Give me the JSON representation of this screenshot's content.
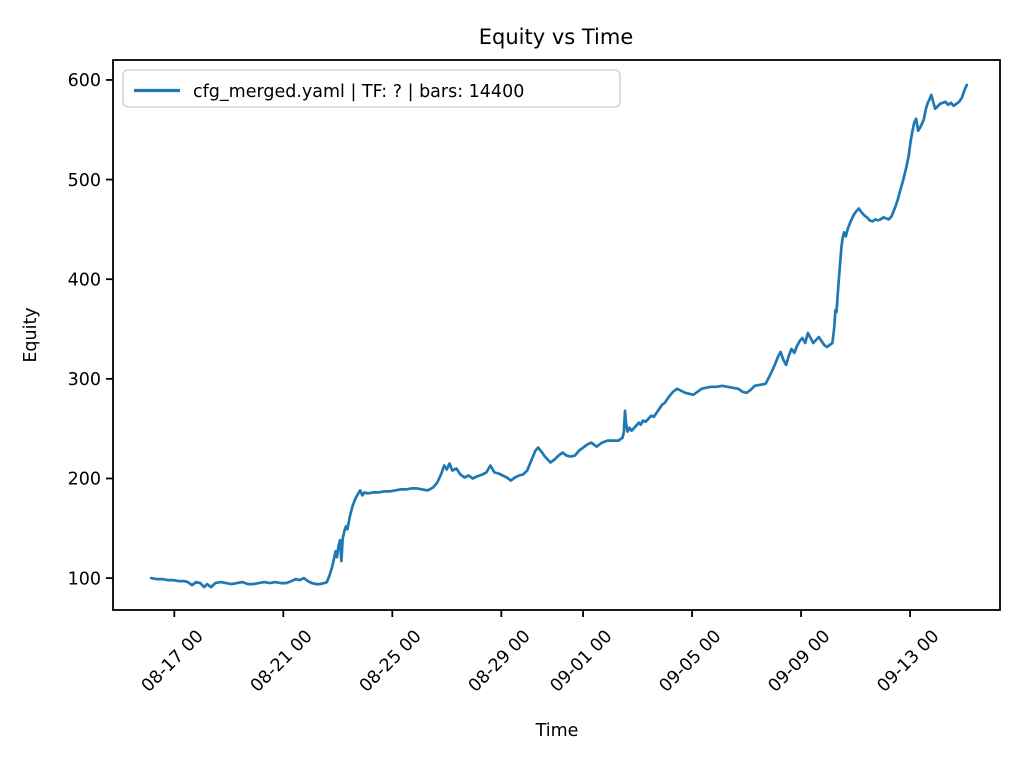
{
  "colors": {
    "background": "#ffffff",
    "axes_frame": "#000000",
    "text": "#000000",
    "legend_border": "#cccccc",
    "legend_fill": "#ffffff",
    "series_blue": "#1f77b4"
  },
  "chart_data": {
    "type": "line",
    "title": "Equity vs Time",
    "xlabel": "Time",
    "ylabel": "Equity",
    "grid": false,
    "legend_position": "upper left",
    "legend_entries": [
      "cfg_merged.yaml | TF: ? | bars: 14400"
    ],
    "x_axis": {
      "x_unit": "days (0 = 08-16 00:00, read from date ticks)",
      "tick_days": [
        1,
        5,
        9,
        13,
        16,
        20,
        24,
        28
      ],
      "tick_labels": [
        "08-17 00",
        "08-21 00",
        "08-25 00",
        "08-29 00",
        "09-01 00",
        "09-05 00",
        "09-09 00",
        "09-13 00"
      ],
      "tick_label_rotation_deg": 45,
      "lim_days": [
        -1.25,
        31.3
      ]
    },
    "y_axis": {
      "ticks": [
        100,
        200,
        300,
        400,
        500,
        600
      ],
      "lim": [
        68,
        620
      ]
    },
    "series": [
      {
        "name": "cfg_merged.yaml | TF: ? | bars: 14400",
        "color": "#1f77b4",
        "line_width": 2.7,
        "points_day_value": [
          [
            0.15,
            100
          ],
          [
            0.35,
            99
          ],
          [
            0.55,
            99
          ],
          [
            0.75,
            98
          ],
          [
            0.95,
            98
          ],
          [
            1.15,
            97
          ],
          [
            1.35,
            97
          ],
          [
            1.5,
            96
          ],
          [
            1.65,
            93
          ],
          [
            1.8,
            96
          ],
          [
            1.95,
            95
          ],
          [
            2.1,
            91
          ],
          [
            2.2,
            94
          ],
          [
            2.35,
            91
          ],
          [
            2.5,
            95
          ],
          [
            2.7,
            96
          ],
          [
            2.9,
            95
          ],
          [
            3.1,
            94
          ],
          [
            3.3,
            95
          ],
          [
            3.5,
            96
          ],
          [
            3.7,
            94
          ],
          [
            3.9,
            94
          ],
          [
            4.1,
            95
          ],
          [
            4.3,
            96
          ],
          [
            4.5,
            95
          ],
          [
            4.7,
            96
          ],
          [
            4.9,
            95
          ],
          [
            5.1,
            95
          ],
          [
            5.3,
            97
          ],
          [
            5.45,
            99
          ],
          [
            5.6,
            98
          ],
          [
            5.75,
            100
          ],
          [
            5.9,
            97
          ],
          [
            6.05,
            95
          ],
          [
            6.2,
            94
          ],
          [
            6.35,
            94
          ],
          [
            6.5,
            95
          ],
          [
            6.6,
            96
          ],
          [
            6.7,
            103
          ],
          [
            6.78,
            110
          ],
          [
            6.85,
            118
          ],
          [
            6.92,
            127
          ],
          [
            6.97,
            121
          ],
          [
            7.03,
            133
          ],
          [
            7.08,
            138
          ],
          [
            7.13,
            117
          ],
          [
            7.18,
            140
          ],
          [
            7.25,
            148
          ],
          [
            7.3,
            152
          ],
          [
            7.35,
            149
          ],
          [
            7.45,
            163
          ],
          [
            7.55,
            173
          ],
          [
            7.65,
            180
          ],
          [
            7.75,
            185
          ],
          [
            7.82,
            188
          ],
          [
            7.9,
            183
          ],
          [
            7.98,
            186
          ],
          [
            8.1,
            185
          ],
          [
            8.3,
            186
          ],
          [
            8.5,
            186
          ],
          [
            8.7,
            187
          ],
          [
            8.9,
            187
          ],
          [
            9.1,
            188
          ],
          [
            9.3,
            189
          ],
          [
            9.5,
            189
          ],
          [
            9.7,
            190
          ],
          [
            9.9,
            190
          ],
          [
            10.1,
            189
          ],
          [
            10.3,
            188
          ],
          [
            10.5,
            191
          ],
          [
            10.65,
            196
          ],
          [
            10.8,
            205
          ],
          [
            10.9,
            213
          ],
          [
            11.0,
            209
          ],
          [
            11.1,
            215
          ],
          [
            11.2,
            208
          ],
          [
            11.35,
            210
          ],
          [
            11.5,
            204
          ],
          [
            11.65,
            201
          ],
          [
            11.8,
            203
          ],
          [
            11.95,
            200
          ],
          [
            12.1,
            202
          ],
          [
            12.3,
            204
          ],
          [
            12.45,
            206
          ],
          [
            12.6,
            213
          ],
          [
            12.75,
            206
          ],
          [
            12.9,
            205
          ],
          [
            13.05,
            203
          ],
          [
            13.2,
            201
          ],
          [
            13.35,
            198
          ],
          [
            13.5,
            201
          ],
          [
            13.65,
            203
          ],
          [
            13.8,
            204
          ],
          [
            13.95,
            208
          ],
          [
            14.1,
            218
          ],
          [
            14.25,
            228
          ],
          [
            14.35,
            231
          ],
          [
            14.5,
            226
          ],
          [
            14.6,
            222
          ],
          [
            14.8,
            216
          ],
          [
            14.95,
            219
          ],
          [
            15.1,
            223
          ],
          [
            15.25,
            226
          ],
          [
            15.4,
            223
          ],
          [
            15.55,
            222
          ],
          [
            15.7,
            223
          ],
          [
            15.85,
            228
          ],
          [
            16.0,
            231
          ],
          [
            16.15,
            234
          ],
          [
            16.3,
            236
          ],
          [
            16.5,
            232
          ],
          [
            16.7,
            236
          ],
          [
            16.9,
            238
          ],
          [
            17.1,
            238
          ],
          [
            17.3,
            238
          ],
          [
            17.45,
            241
          ],
          [
            17.5,
            247
          ],
          [
            17.54,
            268
          ],
          [
            17.58,
            255
          ],
          [
            17.63,
            247
          ],
          [
            17.7,
            251
          ],
          [
            17.78,
            248
          ],
          [
            17.85,
            250
          ],
          [
            17.95,
            253
          ],
          [
            18.05,
            256
          ],
          [
            18.12,
            254
          ],
          [
            18.2,
            258
          ],
          [
            18.3,
            257
          ],
          [
            18.4,
            260
          ],
          [
            18.5,
            263
          ],
          [
            18.6,
            262
          ],
          [
            18.7,
            266
          ],
          [
            18.8,
            270
          ],
          [
            18.9,
            274
          ],
          [
            19.0,
            276
          ],
          [
            19.15,
            282
          ],
          [
            19.3,
            287
          ],
          [
            19.45,
            290
          ],
          [
            19.6,
            288
          ],
          [
            19.75,
            286
          ],
          [
            19.9,
            285
          ],
          [
            20.05,
            284
          ],
          [
            20.2,
            287
          ],
          [
            20.35,
            290
          ],
          [
            20.5,
            291
          ],
          [
            20.7,
            292
          ],
          [
            20.9,
            292
          ],
          [
            21.1,
            293
          ],
          [
            21.3,
            292
          ],
          [
            21.5,
            291
          ],
          [
            21.7,
            290
          ],
          [
            21.85,
            287
          ],
          [
            22.0,
            286
          ],
          [
            22.15,
            289
          ],
          [
            22.3,
            293
          ],
          [
            22.5,
            294
          ],
          [
            22.7,
            295
          ],
          [
            22.85,
            303
          ],
          [
            22.95,
            309
          ],
          [
            23.05,
            315
          ],
          [
            23.15,
            322
          ],
          [
            23.25,
            327
          ],
          [
            23.35,
            319
          ],
          [
            23.45,
            314
          ],
          [
            23.55,
            323
          ],
          [
            23.65,
            330
          ],
          [
            23.75,
            326
          ],
          [
            23.85,
            333
          ],
          [
            23.95,
            338
          ],
          [
            24.05,
            341
          ],
          [
            24.15,
            336
          ],
          [
            24.25,
            346
          ],
          [
            24.35,
            341
          ],
          [
            24.45,
            336
          ],
          [
            24.55,
            339
          ],
          [
            24.65,
            342
          ],
          [
            24.75,
            338
          ],
          [
            24.85,
            334
          ],
          [
            24.95,
            332
          ],
          [
            25.05,
            334
          ],
          [
            25.15,
            336
          ],
          [
            25.22,
            352
          ],
          [
            25.26,
            369
          ],
          [
            25.3,
            367
          ],
          [
            25.36,
            390
          ],
          [
            25.42,
            412
          ],
          [
            25.48,
            432
          ],
          [
            25.52,
            441
          ],
          [
            25.58,
            447
          ],
          [
            25.64,
            443
          ],
          [
            25.72,
            451
          ],
          [
            25.82,
            458
          ],
          [
            25.92,
            464
          ],
          [
            26.02,
            468
          ],
          [
            26.12,
            471
          ],
          [
            26.22,
            467
          ],
          [
            26.32,
            464
          ],
          [
            26.42,
            462
          ],
          [
            26.52,
            459
          ],
          [
            26.62,
            458
          ],
          [
            26.72,
            460
          ],
          [
            26.82,
            459
          ],
          [
            26.92,
            460
          ],
          [
            27.02,
            462
          ],
          [
            27.12,
            461
          ],
          [
            27.22,
            460
          ],
          [
            27.32,
            463
          ],
          [
            27.45,
            472
          ],
          [
            27.55,
            480
          ],
          [
            27.65,
            490
          ],
          [
            27.75,
            500
          ],
          [
            27.85,
            511
          ],
          [
            27.95,
            524
          ],
          [
            28.02,
            538
          ],
          [
            28.08,
            548
          ],
          [
            28.15,
            557
          ],
          [
            28.22,
            561
          ],
          [
            28.3,
            549
          ],
          [
            28.4,
            554
          ],
          [
            28.5,
            560
          ],
          [
            28.58,
            571
          ],
          [
            28.65,
            577
          ],
          [
            28.72,
            581
          ],
          [
            28.78,
            585
          ],
          [
            28.85,
            578
          ],
          [
            28.92,
            571
          ],
          [
            29.0,
            573
          ],
          [
            29.1,
            576
          ],
          [
            29.2,
            577
          ],
          [
            29.3,
            578
          ],
          [
            29.4,
            575
          ],
          [
            29.5,
            577
          ],
          [
            29.6,
            574
          ],
          [
            29.7,
            576
          ],
          [
            29.8,
            578
          ],
          [
            29.9,
            582
          ],
          [
            30.0,
            590
          ],
          [
            30.08,
            595
          ]
        ]
      }
    ]
  }
}
